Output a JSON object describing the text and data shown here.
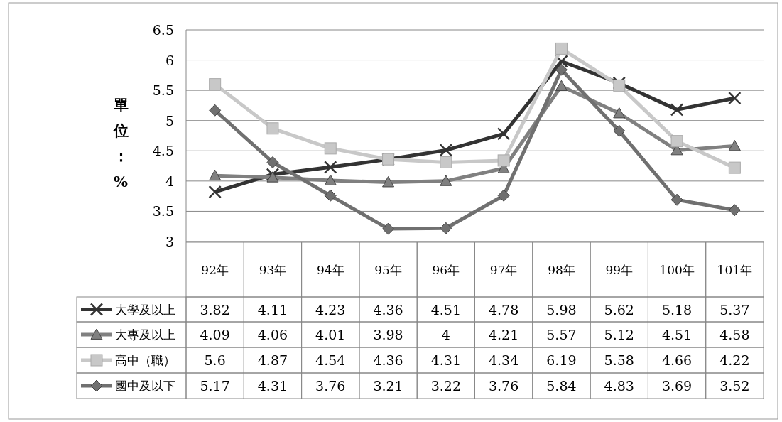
{
  "chart_data": {
    "type": "line",
    "ylabel": "單位：%",
    "categories": [
      "92年",
      "93年",
      "94年",
      "95年",
      "96年",
      "97年",
      "98年",
      "99年",
      "100年",
      "101年"
    ],
    "series": [
      {
        "name": "大學及以上",
        "color": "#333333",
        "marker": "cross",
        "values": [
          3.82,
          4.11,
          4.23,
          4.36,
          4.51,
          4.78,
          5.98,
          5.62,
          5.18,
          5.37
        ]
      },
      {
        "name": "大專及以上",
        "color": "#808080",
        "marker": "triangle",
        "values": [
          4.09,
          4.06,
          4.01,
          3.98,
          4,
          4.21,
          5.57,
          5.12,
          4.51,
          4.58
        ]
      },
      {
        "name": "高中（職）",
        "color": "#c8c8c8",
        "marker": "square",
        "values": [
          5.6,
          4.87,
          4.54,
          4.36,
          4.31,
          4.34,
          6.19,
          5.58,
          4.66,
          4.22
        ]
      },
      {
        "name": "國中及以下",
        "color": "#707070",
        "marker": "diamond",
        "values": [
          5.17,
          4.31,
          3.76,
          3.21,
          3.22,
          3.76,
          5.84,
          4.83,
          3.69,
          3.52
        ]
      }
    ],
    "ylim": [
      3,
      6.5
    ],
    "yticks": [
      3,
      3.5,
      4,
      4.5,
      5,
      5.5,
      6,
      6.5
    ],
    "grid": "y",
    "legend": "bottom",
    "data_labels": true,
    "line_style": "solid"
  }
}
